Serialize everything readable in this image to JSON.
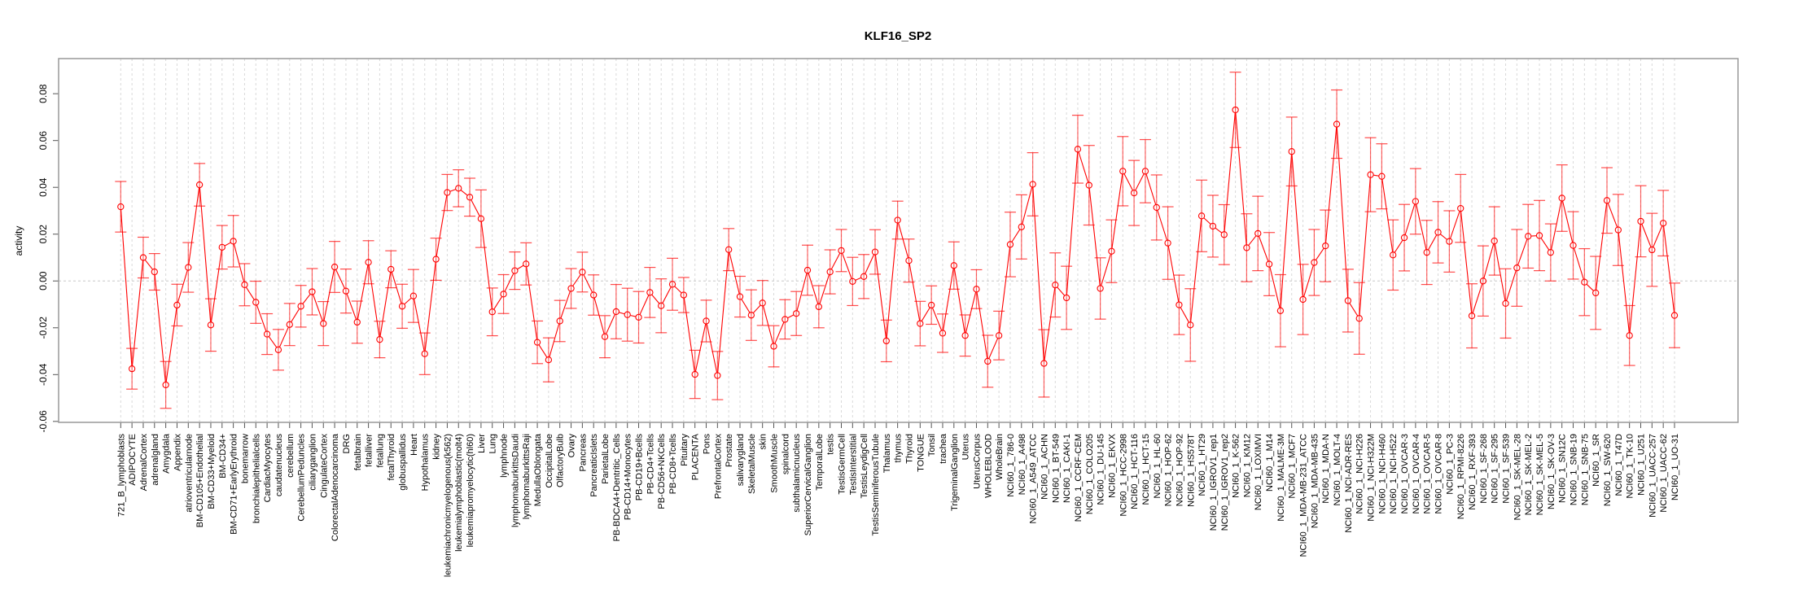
{
  "chart_data": {
    "type": "line",
    "title": "KLF16_SP2",
    "xlabel": "",
    "ylabel": "activity",
    "ylim": [
      -0.0604,
      0.095
    ],
    "yticks": [
      -0.06,
      -0.04,
      -0.02,
      0.0,
      0.02,
      0.04,
      0.06,
      0.08
    ],
    "ytick_labels": [
      "-0.06",
      "-0.04",
      "-0.02",
      "0.00",
      "0.02",
      "0.04",
      "0.06",
      "0.08"
    ],
    "grid": "vertical dashed per category, dashed zero line",
    "legend": "none",
    "color": "#ff0000",
    "categories": [
      "721_B_lymphoblasts",
      "ADIPOCYTE",
      "AdrenalCortex",
      "adrenalgland",
      "Amygdala",
      "Appendix",
      "atrioventricularnode",
      "BM-CD105+Endothelial",
      "BM-CD33+Myeloid",
      "BM-CD34+",
      "BM-CD71+EarlyErythroid",
      "bonemarrow",
      "bronchialepithelialcells",
      "CardiacMyocytes",
      "caudatenucleus",
      "cerebellum",
      "CerebellumPeduncles",
      "ciliaryganglion",
      "CingulateCortex",
      "ColorectalAdenocarcinoma",
      "DRG",
      "fetalbrain",
      "fetalliver",
      "fetallung",
      "fetalThyroid",
      "globuspallidus",
      "Heart",
      "Hypothalamus",
      "kidney",
      "leukemiachronicmyelogenous(k562)",
      "leukemialymphoblastic(molt4)",
      "leukemiapromyelocytic(hl60)",
      "Liver",
      "Lung",
      "lymphnode",
      "lymphomaburkittsDaudi",
      "lymphomaburkittsRaji",
      "MedullaOblongata",
      "OccipitalLobe",
      "OlfactoryBulb",
      "Ovary",
      "Pancreas",
      "PancreaticIslets",
      "ParietalLobe",
      "PB-BDCA4+Dentritic_Cells",
      "PB-CD14+Monocytes",
      "PB-CD19+Bcells",
      "PB-CD4+Tcells",
      "PB-CD56+NKCells",
      "PB-CD8+Tcells",
      "Pituitary",
      "PLACENTA",
      "Pons",
      "PrefrontalCortex",
      "Prostate",
      "salivarygland",
      "SkeletalMuscle",
      "skin",
      "SmoothMuscle",
      "spinalcord",
      "subthalamicnucleus",
      "SuperiorCervicalGanglion",
      "TemporalLobe",
      "testis",
      "TestisGermCell",
      "TestisInterstitial",
      "TestisLeydigCell",
      "TestisSeminiferousTubule",
      "Thalamus",
      "thymus",
      "Thyroid",
      "TONGUE",
      "Tonsil",
      "trachea",
      "TrigeminalGanglion",
      "Uterus",
      "UterusCorpus",
      "WHOLEBLOOD",
      "WholeBrain",
      "NCI60_1_786-0",
      "NCI60_1_A498",
      "NCI60_1_A549_ATCC",
      "NCI60_1_ACHN",
      "NCI60_1_BT-549",
      "NCI60_1_CAKI-1",
      "NCI60_1_CCRF-CEM",
      "NCI60_1_COLO205",
      "NCI60_1_DU-145",
      "NCI60_1_EKVX",
      "NCI60_1_HCC-2998",
      "NCI60_1_HCT-116",
      "NCI60_1_HCT-15",
      "NCI60_1_HL-60",
      "NCI60_1_HOP-62",
      "NCI60_1_HOP-92",
      "NCI60_1_HS578T",
      "NCI60_1_HT29",
      "NCI60_1_IGROV1_rep1",
      "NCI60_1_IGROV1_rep2",
      "NCI60_1_K-562",
      "NCI60_1_KM12",
      "NCI60_1_LOXIMVI",
      "NCI60_1_M14",
      "NCI60_1_MALME-3M",
      "NCI60_1_MCF7",
      "NCI60_1_MDA-MB-231_ATCC",
      "NCI60_1_MDA-MB-435",
      "NCI60_1_MDA-N",
      "NCI60_1_MOLT-4",
      "NCI60_1_NCI-ADR-RES",
      "NCI60_1_NCI-H226",
      "NCI60_1_NCI-H322M",
      "NCI60_1_NCI-H460",
      "NCI60_1_NCI-H522",
      "NCI60_1_OVCAR-3",
      "NCI60_1_OVCAR-4",
      "NCI60_1_OVCAR-5",
      "NCI60_1_OVCAR-8",
      "NCI60_1_PC-3",
      "NCI60_1_RPMI-8226",
      "NCI60_1_RXF-393",
      "NCI60_1_SF-268",
      "NCI60_1_SF-295",
      "NCI60_1_SF-539",
      "NCI60_1_SK-MEL-28",
      "NCI60_1_SK-MEL-2",
      "NCI60_1_SK-MEL-5",
      "NCI60_1_SK-OV-3",
      "NCI60_1_SN12C",
      "NCI60_1_SNB-19",
      "NCI60_1_SNB-75",
      "NCI60_1_SR",
      "NCI60_1_SW-620",
      "NCI60_1_T47D",
      "NCI60_1_TK-10",
      "NCI60_1_U251",
      "NCI60_1_UACC-257",
      "NCI60_1_UACC-62",
      "NCI60_1_UO-31"
    ],
    "series": [
      {
        "name": "activity",
        "values": [
          0.0317,
          -0.0375,
          0.01,
          0.0039,
          -0.0444,
          -0.0103,
          0.0058,
          0.0411,
          -0.0188,
          0.0144,
          0.017,
          -0.0016,
          -0.0091,
          -0.0227,
          -0.0294,
          -0.0186,
          -0.0108,
          -0.0046,
          -0.0182,
          0.006,
          -0.0043,
          -0.0176,
          0.008,
          -0.025,
          0.005,
          -0.0108,
          -0.0064,
          -0.0311,
          0.0093,
          0.0378,
          0.0396,
          0.0358,
          0.0266,
          -0.0132,
          -0.0056,
          0.0044,
          0.0073,
          -0.0262,
          -0.0337,
          -0.0171,
          -0.0032,
          0.0038,
          -0.006,
          -0.0238,
          -0.0131,
          -0.0144,
          -0.0155,
          -0.0049,
          -0.0106,
          -0.0014,
          -0.006,
          -0.0399,
          -0.0171,
          -0.0404,
          0.0134,
          -0.0067,
          -0.0146,
          -0.0094,
          -0.0279,
          -0.0164,
          -0.0139,
          0.0046,
          -0.011,
          0.0039,
          0.013,
          -0.0002,
          0.0019,
          0.0124,
          -0.0256,
          0.026,
          0.0087,
          -0.0182,
          -0.0103,
          -0.0223,
          0.0066,
          -0.0233,
          -0.0035,
          -0.0343,
          -0.0233,
          0.0156,
          0.0231,
          0.0413,
          -0.0352,
          -0.0017,
          -0.0072,
          0.0563,
          0.0409,
          -0.0032,
          0.0127,
          0.0469,
          0.0376,
          0.0469,
          0.0314,
          0.0162,
          -0.0102,
          -0.0188,
          0.0278,
          0.0234,
          0.0198,
          0.0731,
          0.0142,
          0.0203,
          0.0072,
          -0.0127,
          0.0553,
          -0.0079,
          0.0079,
          0.015,
          0.067,
          -0.0084,
          -0.016,
          0.0454,
          0.0447,
          0.0111,
          0.0185,
          0.034,
          0.0122,
          0.0208,
          0.0169,
          0.031,
          -0.0149,
          0.0,
          0.0171,
          -0.0096,
          0.0056,
          0.0191,
          0.0194,
          0.0122,
          0.0354,
          0.0152,
          -0.0005,
          -0.0051,
          0.0344,
          0.0218,
          -0.0233,
          0.0255,
          0.0133,
          0.0247,
          -0.0147
        ],
        "err": [
          0.0108,
          0.0087,
          0.0087,
          0.0078,
          0.01,
          0.0089,
          0.0106,
          0.0091,
          0.0112,
          0.0093,
          0.011,
          0.009,
          0.009,
          0.0087,
          0.0087,
          0.009,
          0.0089,
          0.0099,
          0.0094,
          0.0109,
          0.0094,
          0.009,
          0.0092,
          0.0078,
          0.0079,
          0.0094,
          0.0113,
          0.0089,
          0.009,
          0.0077,
          0.0079,
          0.0081,
          0.0123,
          0.0102,
          0.0083,
          0.008,
          0.009,
          0.0091,
          0.0094,
          0.0088,
          0.0085,
          0.0085,
          0.0086,
          0.009,
          0.0116,
          0.0113,
          0.011,
          0.0107,
          0.0115,
          0.0111,
          0.0075,
          0.0103,
          0.0089,
          0.0103,
          0.009,
          0.0087,
          0.0108,
          0.0096,
          0.0088,
          0.0084,
          0.0094,
          0.0107,
          0.009,
          0.0094,
          0.009,
          0.0103,
          0.0094,
          0.0095,
          0.0089,
          0.0081,
          0.0092,
          0.0095,
          0.0082,
          0.0082,
          0.0101,
          0.0088,
          0.0083,
          0.0111,
          0.0104,
          0.0138,
          0.0137,
          0.0135,
          0.0144,
          0.0137,
          0.0135,
          0.0145,
          0.017,
          0.0131,
          0.0134,
          0.0148,
          0.0139,
          0.0135,
          0.0139,
          0.0155,
          0.0127,
          0.0155,
          0.0153,
          0.0132,
          0.0128,
          0.0161,
          0.0145,
          0.0159,
          0.0135,
          0.0154,
          0.0147,
          0.015,
          0.0141,
          0.0153,
          0.0146,
          0.0134,
          0.0153,
          0.0158,
          0.0139,
          0.015,
          0.0142,
          0.014,
          0.0137,
          0.0131,
          0.0131,
          0.0145,
          0.0137,
          0.015,
          0.0146,
          0.0148,
          0.0164,
          0.0136,
          0.015,
          0.0122,
          0.0142,
          0.0144,
          0.0143,
          0.0156,
          0.014,
          0.0152,
          0.0128,
          0.0152,
          0.0156,
          0.014,
          0.0138
        ]
      }
    ]
  }
}
